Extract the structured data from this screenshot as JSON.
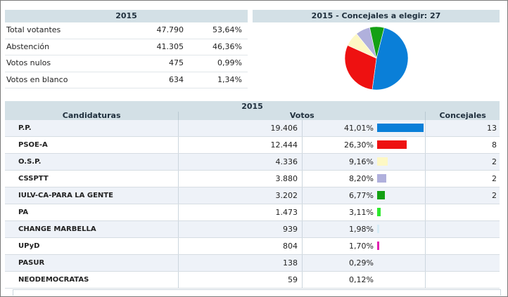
{
  "summary": {
    "header": "2015",
    "rows": [
      {
        "label": "Total votantes",
        "value": "47.790",
        "pct": "53,64%"
      },
      {
        "label": "Abstención",
        "value": "41.305",
        "pct": "46,36%"
      },
      {
        "label": "Votos nulos",
        "value": "475",
        "pct": "0,99%"
      },
      {
        "label": "Votos en blanco",
        "value": "634",
        "pct": "1,34%"
      }
    ]
  },
  "pie": {
    "header": "2015 - Concejales a elegir: 27",
    "slices": [
      {
        "party": "P.P.",
        "seats": 13,
        "color": "#0a7fd8"
      },
      {
        "party": "PSOE-A",
        "seats": 8,
        "color": "#ee1111"
      },
      {
        "party": "O.S.P.",
        "seats": 2,
        "color": "#fdf8c4"
      },
      {
        "party": "CSSPTT",
        "seats": 2,
        "color": "#b0b0dc"
      },
      {
        "party": "IULV-CA-PARA LA GENTE",
        "seats": 2,
        "color": "#13a013"
      }
    ]
  },
  "results": {
    "title": "2015",
    "headers": {
      "candidaturas": "Candidaturas",
      "votos": "Votos",
      "concejales": "Concejales"
    },
    "rows": [
      {
        "name": "P.P.",
        "votes": "19.406",
        "pct": "41,01%",
        "pct_value": 41.01,
        "seats": "13",
        "color": "#0a7fd8"
      },
      {
        "name": "PSOE-A",
        "votes": "12.444",
        "pct": "26,30%",
        "pct_value": 26.3,
        "seats": "8",
        "color": "#ee1111"
      },
      {
        "name": "O.S.P.",
        "votes": "4.336",
        "pct": "9,16%",
        "pct_value": 9.16,
        "seats": "2",
        "color": "#fdf8c4"
      },
      {
        "name": "CSSPTT",
        "votes": "3.880",
        "pct": "8,20%",
        "pct_value": 8.2,
        "seats": "2",
        "color": "#b0b0dc"
      },
      {
        "name": "IULV-CA-PARA LA GENTE",
        "votes": "3.202",
        "pct": "6,77%",
        "pct_value": 6.77,
        "seats": "2",
        "color": "#13a013"
      },
      {
        "name": "PA",
        "votes": "1.473",
        "pct": "3,11%",
        "pct_value": 3.11,
        "seats": "",
        "color": "#2ee82e"
      },
      {
        "name": "CHANGE MARBELLA",
        "votes": "939",
        "pct": "1,98%",
        "pct_value": 1.98,
        "seats": "",
        "color": "#d6ecf6"
      },
      {
        "name": "UPyD",
        "votes": "804",
        "pct": "1,70%",
        "pct_value": 1.7,
        "seats": "",
        "color": "#e020b0"
      },
      {
        "name": "PASUR",
        "votes": "138",
        "pct": "0,29%",
        "pct_value": 0.29,
        "seats": "",
        "color": "#bbbbbb"
      },
      {
        "name": "NEODEMOCRATAS",
        "votes": "59",
        "pct": "0,12%",
        "pct_value": 0.12,
        "seats": "",
        "color": "#bbbbbb"
      }
    ]
  }
}
